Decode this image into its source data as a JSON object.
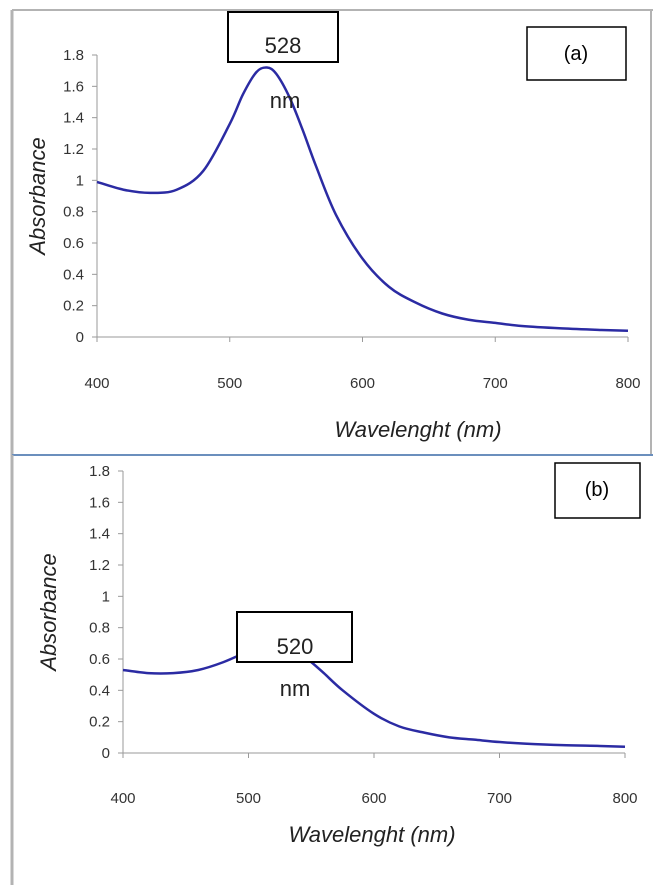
{
  "chart_data": [
    {
      "type": "line",
      "panel_label": "(a)",
      "xlabel": "Wavelenght (nm)",
      "ylabel": "Absorbance",
      "xlim": [
        400,
        800
      ],
      "ylim": [
        0,
        1.8
      ],
      "x_ticks": [
        "400",
        "500",
        "600",
        "700",
        "800"
      ],
      "y_ticks": [
        "0",
        "0.2",
        "0.4",
        "0.6",
        "0.8",
        "1",
        "1.2",
        "1.4",
        "1.6",
        "1.8"
      ],
      "grid": false,
      "annotation": {
        "value": "528",
        "unit": "nm"
      },
      "series": [
        {
          "color": "#2b2ba3",
          "x": [
            400,
            420,
            440,
            460,
            480,
            500,
            510,
            520,
            528,
            535,
            545,
            555,
            565,
            580,
            600,
            620,
            640,
            660,
            680,
            700,
            720,
            750,
            780,
            800
          ],
          "y": [
            0.99,
            0.94,
            0.92,
            0.94,
            1.06,
            1.36,
            1.55,
            1.69,
            1.72,
            1.68,
            1.53,
            1.32,
            1.09,
            0.78,
            0.5,
            0.32,
            0.22,
            0.15,
            0.11,
            0.09,
            0.07,
            0.055,
            0.045,
            0.04
          ]
        }
      ]
    },
    {
      "type": "line",
      "panel_label": "(b)",
      "xlabel": "Wavelenght (nm)",
      "ylabel": "Absorbance",
      "xlim": [
        400,
        800
      ],
      "ylim": [
        0,
        1.8
      ],
      "x_ticks": [
        "400",
        "500",
        "600",
        "700",
        "800"
      ],
      "y_ticks": [
        "0",
        "0.2",
        "0.4",
        "0.6",
        "0.8",
        "1",
        "1.2",
        "1.4",
        "1.6",
        "1.8"
      ],
      "grid": false,
      "annotation": {
        "value": "520",
        "unit": "nm"
      },
      "series": [
        {
          "color": "#2b2ba3",
          "x": [
            400,
            420,
            440,
            460,
            480,
            500,
            510,
            520,
            530,
            540,
            550,
            560,
            575,
            600,
            620,
            640,
            660,
            680,
            700,
            720,
            750,
            780,
            800
          ],
          "y": [
            0.53,
            0.51,
            0.51,
            0.53,
            0.58,
            0.65,
            0.68,
            0.69,
            0.675,
            0.64,
            0.58,
            0.51,
            0.4,
            0.25,
            0.17,
            0.13,
            0.1,
            0.085,
            0.07,
            0.06,
            0.05,
            0.045,
            0.04
          ]
        }
      ]
    }
  ]
}
